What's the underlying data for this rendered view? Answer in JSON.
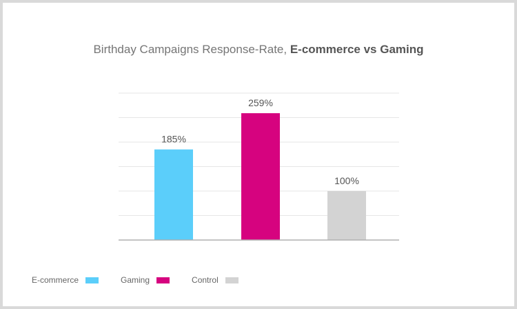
{
  "chart_data": {
    "type": "bar",
    "title": "Birthday Campaigns Response-Rate, ",
    "title_bold": "E-commerce vs Gaming",
    "categories": [
      "E-commerce",
      "Gaming",
      "Control"
    ],
    "values": [
      185,
      259,
      100
    ],
    "data_labels": [
      "185%",
      "259%",
      "100%"
    ],
    "colors": [
      "#5bcefa",
      "#d6037f",
      "#d3d3d3"
    ],
    "ylim": [
      0,
      300
    ],
    "grid": true,
    "legend": {
      "placement": "bottom-left",
      "entries": [
        "E-commerce",
        "Gaming",
        "Control"
      ]
    }
  }
}
